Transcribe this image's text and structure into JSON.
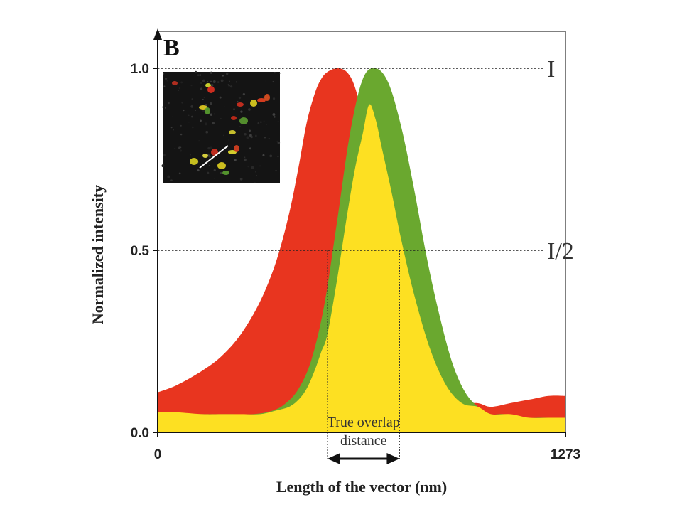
{
  "chart_data": {
    "type": "area",
    "panel_label": "B",
    "xlabel": "Length of the vector (nm)",
    "ylabel": "Normalized intensity",
    "xlim": [
      0,
      1273
    ],
    "ylim": [
      0,
      1.0
    ],
    "x_ticks": [
      "0",
      "1273"
    ],
    "y_ticks": [
      "0.0",
      "0.5",
      "1.0"
    ],
    "reference_lines": [
      {
        "label": "I",
        "y": 1.0
      },
      {
        "label": "I/2",
        "y": 0.5
      }
    ],
    "annotation": {
      "line1": "True overlap",
      "line2": "distance",
      "x_start": 530,
      "x_end": 755
    },
    "series": [
      {
        "color": "#e8351f",
        "x": [
          0,
          60,
          140,
          200,
          260,
          320,
          370,
          410,
          440,
          465,
          490,
          510,
          530,
          560,
          590,
          615,
          640,
          660,
          680,
          700,
          730,
          760,
          800,
          850,
          900,
          950,
          1000,
          1040,
          1100,
          1160,
          1220,
          1273
        ],
        "y": [
          0.11,
          0.13,
          0.17,
          0.21,
          0.27,
          0.36,
          0.47,
          0.6,
          0.73,
          0.85,
          0.93,
          0.97,
          0.99,
          1.0,
          0.99,
          0.95,
          0.86,
          0.74,
          0.6,
          0.47,
          0.35,
          0.26,
          0.18,
          0.12,
          0.09,
          0.08,
          0.08,
          0.07,
          0.08,
          0.09,
          0.1,
          0.1
        ]
      },
      {
        "color": "#6aa82f",
        "x": [
          0,
          120,
          220,
          300,
          360,
          400,
          440,
          480,
          520,
          560,
          600,
          640,
          680,
          720,
          760,
          800,
          840,
          880,
          920,
          960,
          1000,
          1040,
          1080,
          1140,
          1200,
          1273
        ],
        "y": [
          0.05,
          0.05,
          0.05,
          0.05,
          0.06,
          0.08,
          0.12,
          0.2,
          0.35,
          0.58,
          0.82,
          0.97,
          1.0,
          0.96,
          0.84,
          0.67,
          0.48,
          0.32,
          0.19,
          0.11,
          0.07,
          0.05,
          0.05,
          0.04,
          0.04,
          0.04
        ]
      },
      {
        "color": "#fde022",
        "x": [
          0,
          60,
          140,
          200,
          260,
          320,
          370,
          410,
          440,
          465,
          490,
          510,
          530,
          560,
          590,
          615,
          640,
          660,
          680,
          700,
          730,
          760,
          800,
          850,
          900,
          950,
          1000,
          1040,
          1100,
          1160,
          1220,
          1273
        ],
        "y": [
          0.055,
          0.055,
          0.05,
          0.05,
          0.05,
          0.05,
          0.06,
          0.07,
          0.09,
          0.12,
          0.17,
          0.22,
          0.27,
          0.42,
          0.59,
          0.72,
          0.82,
          0.9,
          0.86,
          0.78,
          0.66,
          0.53,
          0.38,
          0.23,
          0.13,
          0.08,
          0.07,
          0.05,
          0.05,
          0.04,
          0.04,
          0.04
        ]
      }
    ]
  },
  "inset": {
    "description_icon": "microscopy-image-icon"
  }
}
